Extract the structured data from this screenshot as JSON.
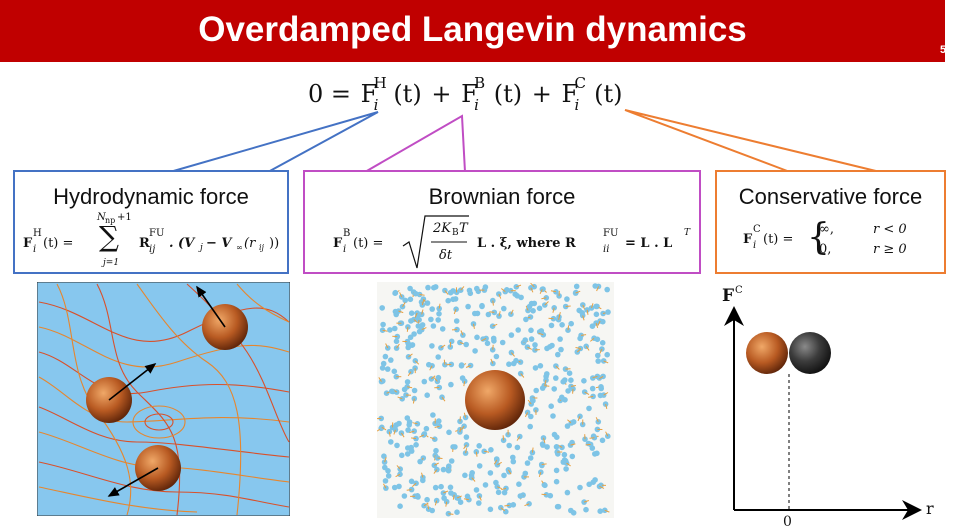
{
  "slide": {
    "title": "Overdamped Langevin dynamics",
    "number": "5"
  },
  "main_equation": {
    "lhs": "0 =",
    "terms": [
      {
        "symbol": "F",
        "sup": "H",
        "sub": "i",
        "arg": "(t)"
      },
      {
        "symbol": "F",
        "sup": "B",
        "sub": "i",
        "arg": "(t)"
      },
      {
        "symbol": "F",
        "sup": "C",
        "sub": "i",
        "arg": "(t)"
      }
    ],
    "plus": "+"
  },
  "hydrodynamic": {
    "title": "Hydrodynamic force",
    "lhs": "F",
    "lhs_sup": "H",
    "lhs_sub": "i",
    "lhs_arg": "(t) =",
    "sum_upper": "N",
    "sum_upper_sub": "np",
    "sum_upper_extra": "+1",
    "sum_lower": "j=1",
    "sum_symbol": "∑",
    "rhs": "R",
    "rhs_sup": "FU",
    "rhs_sub": "ij",
    "rhs_tail": ". (V",
    "rhs_vj": "j",
    "rhs_minus": " − V",
    "rhs_inf": "∞",
    "rhs_r": "(r",
    "rhs_rij": "ij",
    "rhs_close": "))",
    "color": "#4472c4"
  },
  "brownian": {
    "title": "Brownian force",
    "lhs": "F",
    "lhs_sup": "B",
    "lhs_sub": "i",
    "lhs_arg": "(t) =",
    "num": "2K",
    "num_sub": "B",
    "num_T": "T",
    "den": "δt",
    "after": "L . ξ, where R",
    "r_sup": "FU",
    "r_sub": "ii",
    "tail": "= L . L",
    "tail_sup": "T",
    "color": "#c04dc4"
  },
  "conservative": {
    "title": "Conservative force",
    "lhs": "F",
    "lhs_sup": "C",
    "lhs_sub": "i",
    "lhs_arg": "(t) =",
    "case1_val": "∞,",
    "case1_cond": "r < 0",
    "case2_val": "0,",
    "case2_cond": "r  ≥ 0",
    "color": "#ed7d31"
  },
  "plot": {
    "y_label": "F",
    "y_label_sup": "C",
    "x_label": "r",
    "x_tick": "0"
  },
  "colors": {
    "banner": "#c00000",
    "flow_bg": "#87c7ee",
    "particle": "#c0652e",
    "solvent": "#7ec4e6",
    "dark_sphere": "#3a3a3a"
  }
}
